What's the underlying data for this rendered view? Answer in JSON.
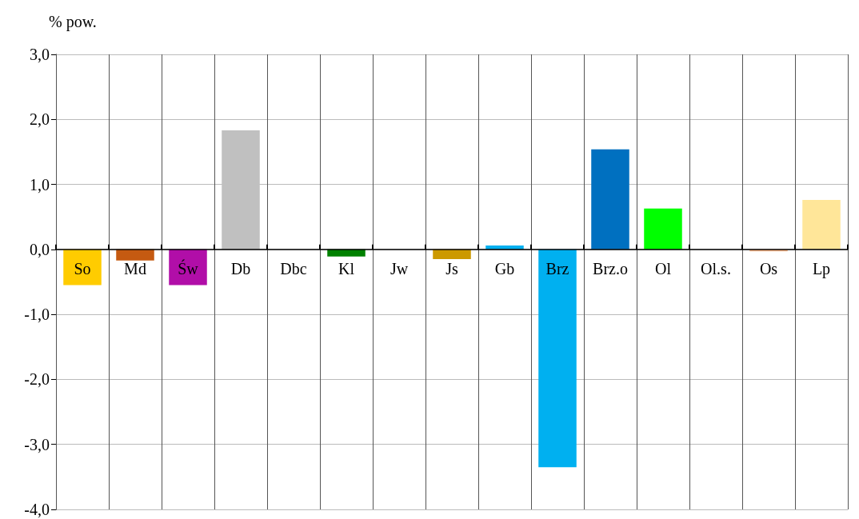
{
  "chart_data": {
    "type": "bar",
    "ylabel": "% pow.",
    "categories": [
      "So",
      "Md",
      "Św",
      "Db",
      "Dbc",
      "Kl",
      "Jw",
      "Js",
      "Gb",
      "Brz",
      "Brz.o",
      "Ol",
      "Ol.s.",
      "Os",
      "Lp"
    ],
    "values": [
      -0.55,
      -0.17,
      -0.55,
      1.83,
      0,
      -0.11,
      0,
      -0.15,
      0.06,
      -3.35,
      1.54,
      0.63,
      0,
      -0.03,
      0.76
    ],
    "colors": [
      "#ffcc00",
      "#c55a11",
      "#b10ea8",
      "#c0c0c0",
      "#808080",
      "#008000",
      "#808080",
      "#cc9900",
      "#00b0f0",
      "#00b0f0",
      "#0070c0",
      "#00ff00",
      "#808080",
      "#f4b183",
      "#ffe699"
    ],
    "ylim": [
      -4,
      3
    ],
    "yticks": [
      {
        "value": -4,
        "label": "-4,0"
      },
      {
        "value": -3,
        "label": "-3,0"
      },
      {
        "value": -2,
        "label": "-2,0"
      },
      {
        "value": -1,
        "label": "-1,0"
      },
      {
        "value": 0,
        "label": "0,0"
      },
      {
        "value": 1,
        "label": "1,0"
      },
      {
        "value": 2,
        "label": "2,0"
      },
      {
        "value": 3,
        "label": "3,0"
      }
    ],
    "grid": true
  }
}
